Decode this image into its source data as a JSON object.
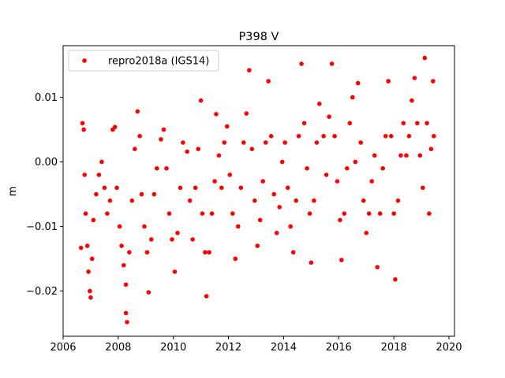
{
  "chart_data": {
    "type": "scatter",
    "title": "P398 V",
    "xlabel": "",
    "ylabel": "m",
    "xlim": [
      2006,
      2020.2
    ],
    "ylim": [
      -0.027,
      0.018
    ],
    "xticks": [
      2006,
      2008,
      2010,
      2012,
      2014,
      2016,
      2018,
      2020
    ],
    "xtick_labels": [
      "2006",
      "2008",
      "2010",
      "2012",
      "2014",
      "2016",
      "2018",
      "2020"
    ],
    "yticks": [
      -0.02,
      -0.01,
      0.0,
      0.01
    ],
    "ytick_labels": [
      "−0.02",
      "−0.01",
      "0.00",
      "0.01"
    ],
    "grid": false,
    "legend_position": "top-left",
    "color": "#ff0000",
    "series": [
      {
        "name": "repro2018a (IGS14)",
        "points": [
          [
            2006.65,
            -0.0133
          ],
          [
            2006.7,
            0.006
          ],
          [
            2006.75,
            0.005
          ],
          [
            2006.78,
            -0.002
          ],
          [
            2006.82,
            -0.008
          ],
          [
            2006.88,
            -0.013
          ],
          [
            2006.92,
            -0.017
          ],
          [
            2006.97,
            -0.02
          ],
          [
            2007.0,
            -0.021
          ],
          [
            2007.05,
            -0.015
          ],
          [
            2007.1,
            -0.009
          ],
          [
            2007.2,
            -0.005
          ],
          [
            2007.3,
            -0.002
          ],
          [
            2007.4,
            0.0
          ],
          [
            2007.5,
            -0.004
          ],
          [
            2007.6,
            -0.008
          ],
          [
            2007.7,
            -0.006
          ],
          [
            2007.8,
            0.005
          ],
          [
            2007.88,
            0.0054
          ],
          [
            2007.95,
            -0.004
          ],
          [
            2008.05,
            -0.01
          ],
          [
            2008.12,
            -0.013
          ],
          [
            2008.2,
            -0.016
          ],
          [
            2008.28,
            -0.019
          ],
          [
            2008.28,
            -0.0234
          ],
          [
            2008.32,
            -0.0248
          ],
          [
            2008.4,
            -0.014
          ],
          [
            2008.5,
            -0.006
          ],
          [
            2008.6,
            0.002
          ],
          [
            2008.7,
            0.0078
          ],
          [
            2008.78,
            0.004
          ],
          [
            2008.85,
            -0.005
          ],
          [
            2008.95,
            -0.01
          ],
          [
            2009.05,
            -0.014
          ],
          [
            2009.1,
            -0.0202
          ],
          [
            2009.2,
            -0.012
          ],
          [
            2009.3,
            -0.005
          ],
          [
            2009.4,
            -0.001
          ],
          [
            2009.55,
            0.0035
          ],
          [
            2009.65,
            0.005
          ],
          [
            2009.75,
            -0.001
          ],
          [
            2009.85,
            -0.008
          ],
          [
            2009.95,
            -0.012
          ],
          [
            2010.05,
            -0.017
          ],
          [
            2010.15,
            -0.011
          ],
          [
            2010.25,
            -0.004
          ],
          [
            2010.35,
            0.003
          ],
          [
            2010.5,
            0.0016
          ],
          [
            2010.6,
            -0.006
          ],
          [
            2010.7,
            -0.012
          ],
          [
            2010.8,
            -0.004
          ],
          [
            2010.9,
            0.002
          ],
          [
            2011.0,
            0.0095
          ],
          [
            2011.05,
            -0.008
          ],
          [
            2011.15,
            -0.014
          ],
          [
            2011.2,
            -0.0208
          ],
          [
            2011.3,
            -0.014
          ],
          [
            2011.4,
            -0.008
          ],
          [
            2011.5,
            -0.003
          ],
          [
            2011.55,
            0.0074
          ],
          [
            2011.65,
            0.001
          ],
          [
            2011.75,
            -0.004
          ],
          [
            2011.85,
            0.003
          ],
          [
            2011.95,
            0.0055
          ],
          [
            2012.05,
            -0.002
          ],
          [
            2012.15,
            -0.008
          ],
          [
            2012.25,
            -0.015
          ],
          [
            2012.35,
            -0.01
          ],
          [
            2012.45,
            -0.004
          ],
          [
            2012.55,
            0.003
          ],
          [
            2012.65,
            0.0075
          ],
          [
            2012.75,
            0.0142
          ],
          [
            2012.85,
            0.002
          ],
          [
            2012.95,
            -0.006
          ],
          [
            2013.05,
            -0.013
          ],
          [
            2013.15,
            -0.009
          ],
          [
            2013.25,
            -0.003
          ],
          [
            2013.35,
            0.003
          ],
          [
            2013.45,
            0.0125
          ],
          [
            2013.55,
            0.004
          ],
          [
            2013.65,
            -0.005
          ],
          [
            2013.75,
            -0.011
          ],
          [
            2013.85,
            -0.007
          ],
          [
            2013.95,
            0.0
          ],
          [
            2014.05,
            0.003
          ],
          [
            2014.15,
            -0.004
          ],
          [
            2014.25,
            -0.01
          ],
          [
            2014.35,
            -0.014
          ],
          [
            2014.45,
            -0.006
          ],
          [
            2014.55,
            0.004
          ],
          [
            2014.65,
            0.0152
          ],
          [
            2014.75,
            0.006
          ],
          [
            2014.85,
            -0.001
          ],
          [
            2014.95,
            -0.008
          ],
          [
            2015.0,
            -0.0156
          ],
          [
            2015.1,
            -0.006
          ],
          [
            2015.2,
            0.003
          ],
          [
            2015.3,
            0.009
          ],
          [
            2015.45,
            0.004
          ],
          [
            2015.55,
            -0.002
          ],
          [
            2015.65,
            0.007
          ],
          [
            2015.75,
            0.0152
          ],
          [
            2015.85,
            0.004
          ],
          [
            2015.95,
            -0.003
          ],
          [
            2016.05,
            -0.009
          ],
          [
            2016.1,
            -0.0152
          ],
          [
            2016.2,
            -0.008
          ],
          [
            2016.3,
            -0.001
          ],
          [
            2016.4,
            0.006
          ],
          [
            2016.5,
            0.01
          ],
          [
            2016.6,
            0.0
          ],
          [
            2016.7,
            0.0122
          ],
          [
            2016.8,
            0.003
          ],
          [
            2016.9,
            -0.006
          ],
          [
            2017.0,
            -0.011
          ],
          [
            2017.1,
            -0.008
          ],
          [
            2017.2,
            -0.003
          ],
          [
            2017.3,
            0.001
          ],
          [
            2017.4,
            -0.0163
          ],
          [
            2017.5,
            -0.008
          ],
          [
            2017.6,
            -0.001
          ],
          [
            2017.7,
            0.004
          ],
          [
            2017.8,
            0.0125
          ],
          [
            2017.9,
            0.004
          ],
          [
            2018.0,
            -0.008
          ],
          [
            2018.05,
            -0.0182
          ],
          [
            2018.15,
            -0.006
          ],
          [
            2018.25,
            0.001
          ],
          [
            2018.35,
            0.006
          ],
          [
            2018.45,
            0.001
          ],
          [
            2018.55,
            0.004
          ],
          [
            2018.65,
            0.0095
          ],
          [
            2018.75,
            0.013
          ],
          [
            2018.85,
            0.006
          ],
          [
            2018.95,
            0.001
          ],
          [
            2019.05,
            -0.004
          ],
          [
            2019.12,
            0.0161
          ],
          [
            2019.2,
            0.006
          ],
          [
            2019.28,
            -0.008
          ],
          [
            2019.35,
            0.002
          ],
          [
            2019.42,
            0.0125
          ],
          [
            2019.45,
            0.004
          ]
        ]
      }
    ]
  }
}
